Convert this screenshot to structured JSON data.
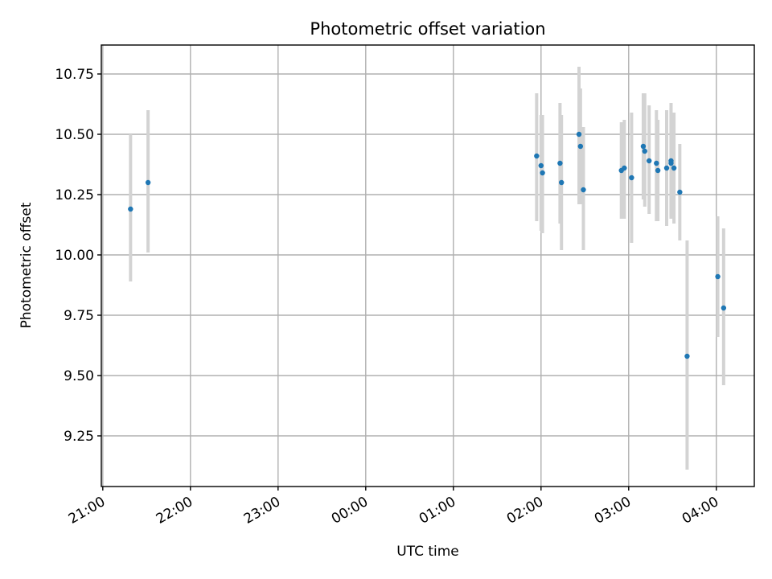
{
  "chart_data": {
    "type": "scatter",
    "title": "Photometric offset variation",
    "xlabel": "UTC time",
    "ylabel": "Photometric offset",
    "x_unit": "UTC clock time (times after 00:00 are the following day)",
    "xlim": [
      "20:59",
      "04:26"
    ],
    "ylim": [
      9.04,
      10.87
    ],
    "x_ticks": [
      "21:00",
      "22:00",
      "23:00",
      "00:00",
      "01:00",
      "02:00",
      "03:00",
      "04:00"
    ],
    "y_ticks": [
      "9.25",
      "9.50",
      "9.75",
      "10.00",
      "10.25",
      "10.50",
      "10.75"
    ],
    "grid": true,
    "marker_color": "#1f77b4",
    "errorbar_color": "#d3d3d3",
    "points": [
      {
        "t": "21:19",
        "y": 10.19,
        "lo": 9.89,
        "hi": 10.5
      },
      {
        "t": "21:31",
        "y": 10.3,
        "lo": 10.01,
        "hi": 10.6
      },
      {
        "t": "01:57",
        "y": 10.41,
        "lo": 10.14,
        "hi": 10.67
      },
      {
        "t": "02:00",
        "y": 10.37,
        "lo": 10.1,
        "hi": 10.58
      },
      {
        "t": "02:01",
        "y": 10.34,
        "lo": 10.09,
        "hi": 10.58
      },
      {
        "t": "02:13",
        "y": 10.38,
        "lo": 10.13,
        "hi": 10.63
      },
      {
        "t": "02:14",
        "y": 10.3,
        "lo": 10.02,
        "hi": 10.58
      },
      {
        "t": "02:26",
        "y": 10.5,
        "lo": 10.21,
        "hi": 10.78
      },
      {
        "t": "02:27",
        "y": 10.45,
        "lo": 10.21,
        "hi": 10.69
      },
      {
        "t": "02:29",
        "y": 10.27,
        "lo": 10.02,
        "hi": 10.53
      },
      {
        "t": "02:55",
        "y": 10.35,
        "lo": 10.15,
        "hi": 10.55
      },
      {
        "t": "02:57",
        "y": 10.36,
        "lo": 10.15,
        "hi": 10.56
      },
      {
        "t": "03:02",
        "y": 10.32,
        "lo": 10.05,
        "hi": 10.59
      },
      {
        "t": "03:10",
        "y": 10.45,
        "lo": 10.23,
        "hi": 10.67
      },
      {
        "t": "03:11",
        "y": 10.43,
        "lo": 10.2,
        "hi": 10.67
      },
      {
        "t": "03:14",
        "y": 10.39,
        "lo": 10.17,
        "hi": 10.62
      },
      {
        "t": "03:19",
        "y": 10.38,
        "lo": 10.14,
        "hi": 10.6
      },
      {
        "t": "03:20",
        "y": 10.35,
        "lo": 10.14,
        "hi": 10.56
      },
      {
        "t": "03:26",
        "y": 10.36,
        "lo": 10.12,
        "hi": 10.6
      },
      {
        "t": "03:29",
        "y": 10.39,
        "lo": 10.16,
        "hi": 10.63
      },
      {
        "t": "03:29",
        "y": 10.38,
        "lo": 10.15,
        "hi": 10.61
      },
      {
        "t": "03:31",
        "y": 10.36,
        "lo": 10.13,
        "hi": 10.59
      },
      {
        "t": "03:35",
        "y": 10.26,
        "lo": 10.06,
        "hi": 10.46
      },
      {
        "t": "03:40",
        "y": 9.58,
        "lo": 9.11,
        "hi": 10.06
      },
      {
        "t": "04:01",
        "y": 9.91,
        "lo": 9.66,
        "hi": 10.16
      },
      {
        "t": "04:05",
        "y": 9.78,
        "lo": 9.46,
        "hi": 10.11
      }
    ]
  }
}
